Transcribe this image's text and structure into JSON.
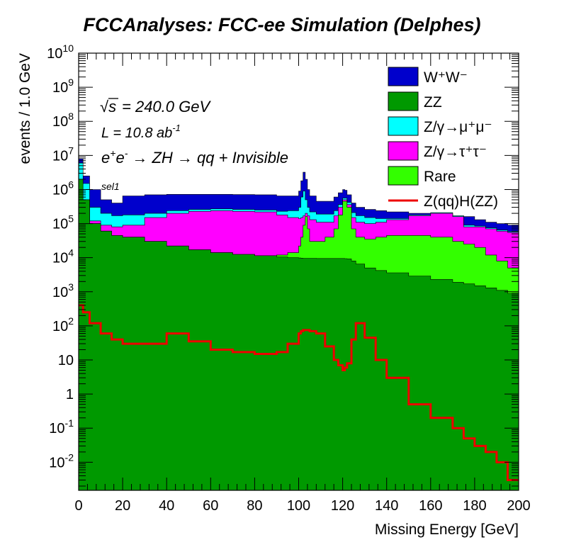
{
  "title": "FCCAnalyses: FCC-ee Simulation (Delphes)",
  "chart_data": {
    "type": "area",
    "stacked": true,
    "yscale": "log",
    "title": "FCCAnalyses: FCC-ee Simulation (Delphes)",
    "xlabel": "Missing Energy [GeV]",
    "ylabel": "events / 1.0 GeV",
    "xlim": [
      0,
      200
    ],
    "ylim": [
      0.0015,
      10000000000
    ],
    "x_ticks": [
      "0",
      "20",
      "40",
      "60",
      "80",
      "100",
      "120",
      "140",
      "160",
      "180",
      "200"
    ],
    "y_ticks": [
      {
        "base": "10",
        "exp": "-2"
      },
      {
        "base": "10",
        "exp": "-1"
      },
      {
        "base": "1",
        "exp": ""
      },
      {
        "base": "10",
        "exp": ""
      },
      {
        "base": "10",
        "exp": "2"
      },
      {
        "base": "10",
        "exp": "3"
      },
      {
        "base": "10",
        "exp": "4"
      },
      {
        "base": "10",
        "exp": "5"
      },
      {
        "base": "10",
        "exp": "6"
      },
      {
        "base": "10",
        "exp": "7"
      },
      {
        "base": "10",
        "exp": "8"
      },
      {
        "base": "10",
        "exp": "9"
      },
      {
        "base": "10",
        "exp": "10"
      }
    ],
    "annotations": {
      "sqrt_s": "= 240.0 GeV",
      "lumi": "L = 10.8 ab",
      "lumi_exp": "-1",
      "process": "e",
      "process_rest": "→ ZH → qq + Invisible",
      "selection": "sel1"
    },
    "legend_position": "top-right",
    "legend": [
      {
        "label": "W⁺W⁻",
        "color": "#0000cc",
        "kind": "fill"
      },
      {
        "label": "ZZ",
        "color": "#009900",
        "kind": "fill"
      },
      {
        "label": "Z/γ→μ⁺μ⁻",
        "color": "#00ffff",
        "kind": "fill"
      },
      {
        "label": "Z/γ→τ⁺τ⁻",
        "color": "#ff00ff",
        "kind": "fill"
      },
      {
        "label": "Rare",
        "color": "#33ff00",
        "kind": "fill"
      },
      {
        "label": "Z(qq)H(ZZ)",
        "color": "#ee0000",
        "kind": "line"
      }
    ],
    "x": [
      0,
      2,
      5,
      10,
      15,
      20,
      30,
      40,
      50,
      60,
      70,
      80,
      90,
      95,
      100,
      101,
      102,
      103,
      104,
      105,
      108,
      112,
      116,
      118,
      120,
      121,
      122,
      124,
      126,
      130,
      135,
      140,
      150,
      160,
      170,
      175,
      180,
      185,
      190,
      195,
      200
    ],
    "series": [
      {
        "name": "ZZ",
        "color": "#009900",
        "values": [
          2000000,
          500000,
          100000,
          60000,
          45000,
          40000,
          30000,
          22000,
          17000,
          14000,
          12500,
          11500,
          10500,
          10000,
          9800,
          9700,
          9600,
          9600,
          9600,
          9600,
          9500,
          9500,
          9500,
          9500,
          9500,
          9400,
          9200,
          8000,
          6500,
          5000,
          4200,
          3600,
          2900,
          2300,
          1900,
          1700,
          1500,
          1300,
          1100,
          900,
          800
        ]
      },
      {
        "name": "Rare",
        "color": "#33ff00",
        "values": [
          2000000,
          500000,
          100000,
          60000,
          45000,
          40000,
          30000,
          22000,
          17000,
          14000,
          12500,
          11500,
          12000,
          14000,
          22000,
          40000,
          90000,
          160000,
          70000,
          30000,
          30000,
          40000,
          70000,
          180000,
          450000,
          450000,
          300000,
          70000,
          40000,
          35000,
          40000,
          45000,
          45000,
          40000,
          30000,
          25000,
          20000,
          12000,
          8000,
          5000,
          3000
        ]
      },
      {
        "name": "Z/γ→τ⁺τ⁻",
        "color": "#ff00ff",
        "values": [
          2000000,
          500000,
          120000,
          90000,
          80000,
          90000,
          150000,
          200000,
          230000,
          240000,
          230000,
          220000,
          180000,
          150000,
          140000,
          150000,
          170000,
          200000,
          170000,
          130000,
          110000,
          110000,
          170000,
          300000,
          500000,
          500000,
          360000,
          150000,
          110000,
          100000,
          110000,
          130000,
          170000,
          200000,
          160000,
          80000,
          80000,
          70000,
          60000,
          55000,
          50000
        ]
      },
      {
        "name": "Z/γ→μ⁺μ⁻",
        "color": "#00ffff",
        "values": [
          6000000,
          1500000,
          300000,
          200000,
          170000,
          180000,
          200000,
          240000,
          260000,
          270000,
          260000,
          250000,
          230000,
          240000,
          300000,
          600000,
          900000,
          500000,
          300000,
          220000,
          190000,
          190000,
          240000,
          360000,
          560000,
          560000,
          420000,
          210000,
          170000,
          150000,
          140000,
          140000,
          180000,
          210000,
          170000,
          90000,
          85000,
          75000,
          65000,
          58000,
          52000
        ]
      },
      {
        "name": "W⁺W⁻",
        "color": "#0000cc",
        "values": [
          8000000,
          2500000,
          1000000,
          500000,
          400000,
          650000,
          700000,
          720000,
          720000,
          720000,
          710000,
          700000,
          650000,
          650000,
          900000,
          1800000,
          3200000,
          2000000,
          1000000,
          650000,
          450000,
          450000,
          600000,
          800000,
          1000000,
          950000,
          700000,
          400000,
          300000,
          260000,
          240000,
          220000,
          200000,
          190000,
          170000,
          160000,
          130000,
          110000,
          100000,
          90000,
          75000
        ]
      },
      {
        "name": "Z(qq)H(ZZ)",
        "color": "#ee0000",
        "stacked": false,
        "values": [
          400,
          250,
          120,
          60,
          40,
          30,
          30,
          60,
          35,
          20,
          17,
          15,
          17,
          30,
          60,
          70,
          75,
          75,
          75,
          70,
          60,
          25,
          10,
          7,
          5,
          6,
          8,
          40,
          120,
          45,
          10,
          3,
          0.5,
          0.2,
          0.1,
          0.05,
          0.03,
          0.02,
          0.01,
          0.003,
          0.002
        ]
      }
    ]
  }
}
